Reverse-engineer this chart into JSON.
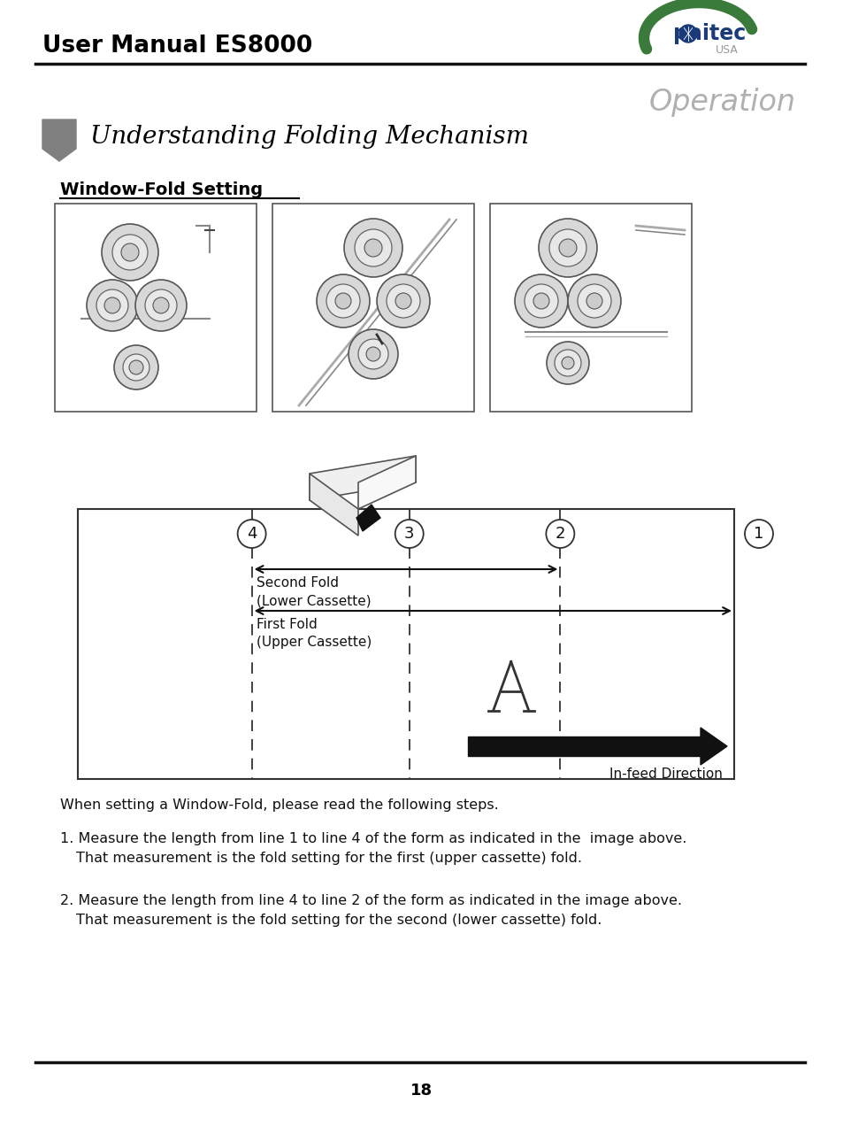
{
  "title": "User Manual ES8000",
  "operation_text": "Operation",
  "section_title": "Understanding Folding Mechanism",
  "subsection_title": "Window-Fold Setting",
  "intro_text": "When setting a Window-Fold, please read the following steps.",
  "step1_line1": "1. Measure the length from line 1 to line 4 of the form as indicated in the  image above.",
  "step1_line2": "   That measurement is the fold setting for the first (upper cassette) fold.",
  "step2_line1": "2. Measure the length from line 4 to line 2 of the form as indicated in the image above.",
  "step2_line2": "   That measurement is the fold setting for the second (lower cassette) fold.",
  "page_number": "18",
  "bg_color": "#ffffff",
  "text_color": "#000000",
  "gray_color": "#808080",
  "line_color": "#333333",
  "second_fold_label1": "Second Fold",
  "second_fold_label2": "(Lower Cassette)",
  "first_fold_label1": "First Fold",
  "first_fold_label2": "(Upper Cassette)",
  "infeed_label": "In-feed Direction"
}
